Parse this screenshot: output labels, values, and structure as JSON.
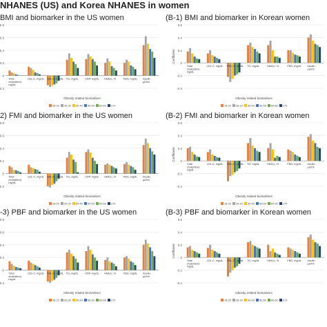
{
  "page_title": "NHANES (US) and Korea NHANES in women",
  "colors": [
    "#ed7d31",
    "#a5a5a5",
    "#ffc000",
    "#4472c4",
    "#70ad47",
    "#264478"
  ],
  "legend_labels": [
    "18-29",
    "30-39",
    "30-49",
    "50-59",
    "60-69",
    "≥70"
  ],
  "chart_data": [
    {
      "id": "A-1",
      "title": "BMI and biomarker in the US women",
      "type": "bar",
      "xlabel": "Obesity related biomarkers",
      "ylabel": "",
      "ylim": [
        -0.2,
        0.8
      ],
      "ticks": [
        "0.8",
        "0.6",
        "0.4",
        "0.2",
        "0",
        "-0.2"
      ],
      "categories": [
        "Total cholesterol, mg/dL",
        "LDL-C, mg/dL",
        "HDL-C, mg/dL",
        "TG, mg/dL",
        "CRP, mg/dL",
        "HbA1c, %",
        "FBG, mg/dL",
        "Insulin, µU/ml"
      ],
      "series": [
        {
          "values": [
            0.08,
            0.14,
            -0.15,
            0.25,
            0.26,
            0.2,
            0.2,
            0.48
          ]
        },
        {
          "values": [
            0.05,
            0.12,
            -0.18,
            0.35,
            0.34,
            0.27,
            0.25,
            0.62
          ]
        },
        {
          "values": [
            0.04,
            0.09,
            -0.16,
            0.28,
            0.3,
            0.22,
            0.22,
            0.5
          ]
        },
        {
          "values": [
            0.02,
            0.05,
            -0.14,
            0.22,
            0.26,
            0.15,
            0.16,
            0.42
          ]
        },
        {
          "values": [
            0.01,
            0.04,
            -0.12,
            0.18,
            0.22,
            0.12,
            0.14,
            0.38
          ]
        },
        {
          "values": [
            0.0,
            0.02,
            -0.08,
            0.12,
            0.16,
            0.08,
            0.1,
            0.28
          ]
        }
      ]
    },
    {
      "id": "B-1",
      "title": "(B-1) BMI and biomarker in Korean women",
      "type": "bar",
      "xlabel": "Obesity related biomarkers",
      "ylabel": "Coefficient",
      "ylim": [
        -0.4,
        0.6
      ],
      "ticks": [
        "0.6",
        "0.4",
        "0.2",
        "0",
        "-0.2",
        "-0.4"
      ],
      "categories": [
        "Total cholesterol, mg/dL",
        "LDL-C, mg/dL",
        "HDL-C, mg/dL",
        "TG, mg/dL",
        "HbA1c, %",
        "FBG, mg/dL",
        "Insulin, µU/ml"
      ],
      "series": [
        {
          "values": [
            0.18,
            0.15,
            -0.22,
            0.28,
            0.28,
            0.2,
            0.4
          ]
        },
        {
          "values": [
            0.23,
            0.2,
            -0.3,
            0.32,
            0.35,
            0.2,
            0.45
          ]
        },
        {
          "values": [
            0.15,
            0.12,
            -0.25,
            0.25,
            0.2,
            0.16,
            0.35
          ]
        },
        {
          "values": [
            0.1,
            0.1,
            -0.2,
            0.22,
            0.1,
            0.13,
            0.3
          ]
        },
        {
          "values": [
            0.07,
            0.08,
            -0.18,
            0.18,
            0.1,
            0.12,
            0.28
          ]
        },
        {
          "values": [
            0.06,
            0.06,
            -0.15,
            0.15,
            0.08,
            0.1,
            0.25
          ]
        }
      ]
    },
    {
      "id": "A-2",
      "title": "2) FMI and biomarker in the US women",
      "type": "bar",
      "xlabel": "Obesity related biomarkers",
      "ylabel": "",
      "ylim": [
        -0.2,
        0.8
      ],
      "ticks": [
        "0.8",
        "0.6",
        "0.4",
        "0.2",
        "0",
        "-0.2"
      ],
      "categories": [
        "Total cholesterol, mg/dL",
        "LDL-C, mg/dL",
        "HDL-C, mg/dL",
        "TG, mg/dL",
        "CRP, mg/dL",
        "HbA1c, %",
        "FBG, mg/dL",
        "Insulin, µU/ml"
      ],
      "series": [
        {
          "values": [
            0.12,
            0.14,
            -0.2,
            0.25,
            0.34,
            0.14,
            0.15,
            0.45
          ]
        },
        {
          "values": [
            0.1,
            0.1,
            -0.22,
            0.34,
            0.38,
            0.16,
            0.18,
            0.55
          ]
        },
        {
          "values": [
            0.06,
            0.09,
            -0.18,
            0.3,
            0.33,
            0.14,
            0.14,
            0.48
          ]
        },
        {
          "values": [
            0.05,
            0.07,
            -0.16,
            0.22,
            0.25,
            0.12,
            0.12,
            0.4
          ]
        },
        {
          "values": [
            0.04,
            0.06,
            -0.12,
            0.18,
            0.2,
            0.1,
            0.1,
            0.35
          ]
        },
        {
          "values": [
            0.02,
            0.03,
            -0.08,
            0.02,
            0.15,
            0.08,
            0.06,
            0.3
          ]
        }
      ]
    },
    {
      "id": "B-2",
      "title": "(B-2) FMI and biomarker in Korean women",
      "type": "bar",
      "xlabel": "Obesity related biomarkers",
      "ylabel": "Coefficient",
      "ylim": [
        -0.4,
        0.6
      ],
      "ticks": [
        "0.6",
        "0.4",
        "0.2",
        "0",
        "-0.2",
        "-0.4"
      ],
      "categories": [
        "Total cholesterol, mg/dL",
        "LDL-C, mg/dL",
        "HDL-C, mg/dL",
        "TG, mg/dL",
        "HbA1c, %",
        "FBG, mg/dL",
        "Insulin, µU/ml"
      ],
      "series": [
        {
          "values": [
            0.2,
            0.14,
            -0.32,
            0.28,
            0.2,
            0.18,
            0.38
          ]
        },
        {
          "values": [
            0.22,
            0.18,
            -0.24,
            0.36,
            0.28,
            0.16,
            0.42
          ]
        },
        {
          "values": [
            0.14,
            0.1,
            -0.22,
            0.24,
            0.18,
            0.14,
            0.32
          ]
        },
        {
          "values": [
            0.1,
            0.08,
            -0.18,
            0.2,
            0.05,
            0.1,
            0.28
          ]
        },
        {
          "values": [
            0.07,
            0.06,
            -0.16,
            0.16,
            0.08,
            0.08,
            0.22
          ]
        },
        {
          "values": [
            0.06,
            0.05,
            -0.12,
            0.14,
            0.06,
            0.06,
            0.2
          ]
        }
      ]
    },
    {
      "id": "A-3",
      "title": "-3) PBF and biomarker in the US women",
      "type": "bar",
      "xlabel": "Obesity related biomarkers",
      "ylabel": "",
      "ylim": [
        -0.2,
        0.8
      ],
      "ticks": [
        "0.8",
        "0.6",
        "0.4",
        "0.2",
        "0",
        "-0.2"
      ],
      "categories": [
        "Total cholesterol, mg/dL",
        "LDL-C, mg/dL",
        "HDL-C, mg/dL",
        "TG, mg/dL",
        "CRP, mg/dL",
        "HbA1c, %",
        "FBG, mg/dL",
        "Insulin, µU/ml"
      ],
      "series": [
        {
          "values": [
            0.14,
            0.15,
            -0.18,
            0.28,
            0.3,
            0.16,
            0.2,
            0.4
          ]
        },
        {
          "values": [
            0.1,
            0.12,
            -0.2,
            0.32,
            0.38,
            0.2,
            0.22,
            0.48
          ]
        },
        {
          "values": [
            0.07,
            0.1,
            -0.17,
            0.26,
            0.32,
            0.14,
            0.18,
            0.42
          ]
        },
        {
          "values": [
            0.05,
            0.08,
            -0.15,
            0.22,
            0.25,
            0.12,
            0.14,
            0.36
          ]
        },
        {
          "values": [
            0.04,
            0.06,
            -0.12,
            0.18,
            0.2,
            0.1,
            0.12,
            0.3
          ]
        },
        {
          "values": [
            0.03,
            0.04,
            -0.08,
            0.12,
            0.15,
            0.06,
            0.08,
            0.22
          ]
        }
      ]
    },
    {
      "id": "B-3",
      "title": "(B-3) PBF and biomarker in Korean women",
      "type": "bar",
      "xlabel": "Obesity related biomarkers",
      "ylabel": "Coefficient",
      "ylim": [
        -0.4,
        0.6
      ],
      "ticks": [
        "0.6",
        "0.4",
        "0.2",
        "0",
        "-0.2",
        "-0.4"
      ],
      "categories": [
        "Total cholesterol, mg/dL",
        "LDL-C, mg/dL",
        "HDL-C, mg/dL",
        "TG, mg/dL",
        "HbA1c, %",
        "FBG, mg/dL",
        "Insulin, µU/ml"
      ],
      "series": [
        {
          "values": [
            0.16,
            0.15,
            -0.3,
            0.24,
            0.2,
            0.16,
            0.32
          ]
        },
        {
          "values": [
            0.18,
            0.2,
            -0.24,
            0.26,
            0.1,
            0.14,
            0.36
          ]
        },
        {
          "values": [
            0.12,
            0.12,
            -0.2,
            0.2,
            0.14,
            0.12,
            0.28
          ]
        },
        {
          "values": [
            0.1,
            0.1,
            -0.16,
            0.18,
            0.08,
            0.1,
            0.24
          ]
        },
        {
          "values": [
            0.08,
            0.08,
            -0.14,
            0.16,
            0.06,
            0.08,
            0.22
          ]
        },
        {
          "values": [
            0.06,
            0.06,
            -0.1,
            0.14,
            0.04,
            0.06,
            0.18
          ]
        }
      ]
    }
  ]
}
